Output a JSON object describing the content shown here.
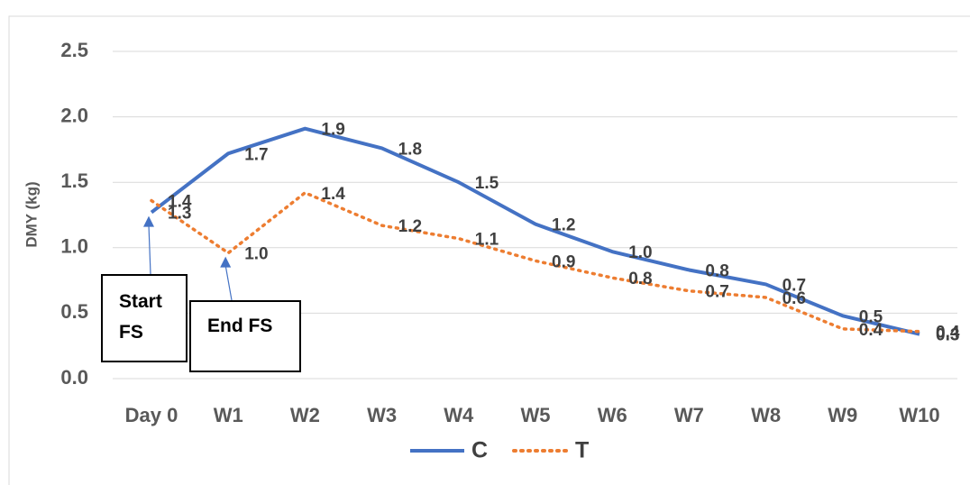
{
  "chart_data": {
    "type": "line",
    "y_label": "DMY (kg)",
    "categories": [
      "Day 0",
      "W1",
      "W2",
      "W3",
      "W4",
      "W5",
      "W6",
      "W7",
      "W8",
      "W9",
      "W10"
    ],
    "series": [
      {
        "name": "C",
        "color": "#4472c4",
        "style": "solid",
        "values": [
          1.27,
          1.72,
          1.91,
          1.76,
          1.5,
          1.18,
          0.97,
          0.83,
          0.72,
          0.48,
          0.34
        ],
        "value_labels": [
          "1.3",
          "1.7",
          "1.9",
          "1.8",
          "1.5",
          "1.2",
          "1.0",
          "0.8",
          "0.7",
          "0.5",
          "0.3"
        ]
      },
      {
        "name": "T",
        "color": "#ed7d31",
        "style": "dotted",
        "values": [
          1.36,
          0.96,
          1.42,
          1.17,
          1.07,
          0.9,
          0.77,
          0.67,
          0.62,
          0.38,
          0.36
        ],
        "value_labels": [
          "1.4",
          "1.0",
          "1.4",
          "1.2",
          "1.1",
          "0.9",
          "0.8",
          "0.7",
          "0.6",
          "0.4",
          "0.4"
        ]
      }
    ],
    "ylim": [
      0,
      2.5
    ],
    "yticks": [
      {
        "value": 0,
        "label": "0.0"
      },
      {
        "value": 0.5,
        "label": "0.5"
      },
      {
        "value": 1,
        "label": "1.0"
      },
      {
        "value": 1.5,
        "label": "1.5"
      },
      {
        "value": 2,
        "label": "2.0"
      },
      {
        "value": 2.5,
        "label": "2.5"
      }
    ],
    "grid": true,
    "legend": "bottom",
    "annotations": [
      {
        "text": "Start FS",
        "category": 0
      },
      {
        "text": "End FS",
        "category": 1
      }
    ]
  }
}
